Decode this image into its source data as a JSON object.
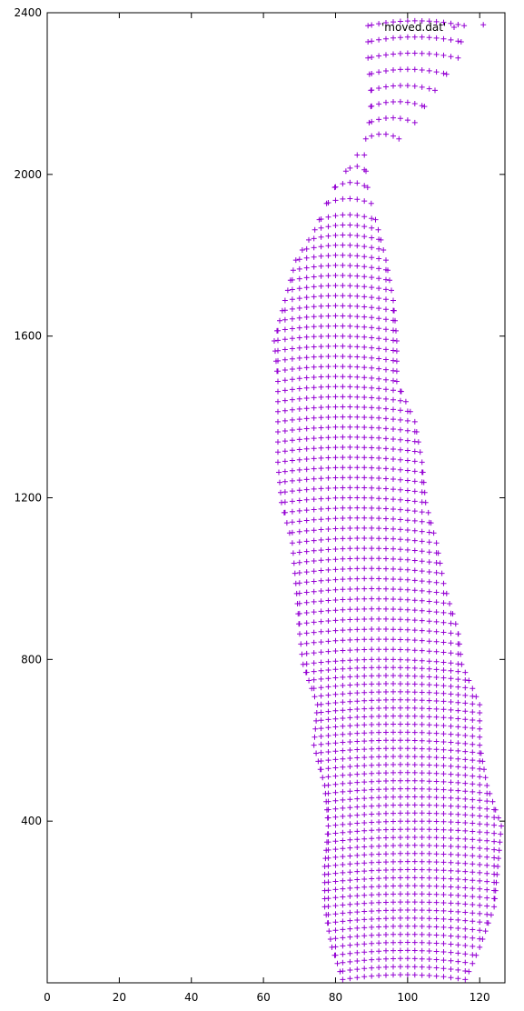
{
  "chart_data": {
    "type": "scatter",
    "title": "",
    "xlabel": "",
    "ylabel": "",
    "xlim": [
      0,
      127
    ],
    "ylim": [
      0,
      2400
    ],
    "xticks": [
      0,
      20,
      40,
      60,
      80,
      100,
      120
    ],
    "yticks": [
      400,
      800,
      1200,
      1600,
      2000,
      2400
    ],
    "grid": false,
    "legend": {
      "placement": "top-right",
      "entries": [
        "'moved.dat'"
      ]
    },
    "marker": "+",
    "color": "#9400d3",
    "sampling": {
      "x_step": 2,
      "row_heights_in_y_units": [
        20,
        25,
        40
      ]
    },
    "series": [
      {
        "name": "'moved.dat'",
        "segments": [
          {
            "y": 20,
            "x_min": 82,
            "x_max": 116
          },
          {
            "y": 100,
            "x_min": 79,
            "x_max": 120
          },
          {
            "y": 200,
            "x_min": 77,
            "x_max": 124
          },
          {
            "y": 300,
            "x_min": 77,
            "x_max": 125
          },
          {
            "y": 400,
            "x_min": 78,
            "x_max": 126
          },
          {
            "y": 500,
            "x_min": 77,
            "x_max": 122
          },
          {
            "y": 600,
            "x_min": 74,
            "x_max": 120
          },
          {
            "y": 700,
            "x_min": 75,
            "x_max": 120
          },
          {
            "y": 800,
            "x_min": 71,
            "x_max": 115
          },
          {
            "y": 880,
            "x_min": 70,
            "x_max": 114
          },
          {
            "y": 1000,
            "x_min": 69,
            "x_max": 110
          },
          {
            "y": 1100,
            "x_min": 68,
            "x_max": 108
          },
          {
            "y": 1200,
            "x_min": 65,
            "x_max": 105
          },
          {
            "y": 1300,
            "x_min": 64,
            "x_max": 104
          },
          {
            "y": 1400,
            "x_min": 64,
            "x_max": 102
          },
          {
            "y": 1500,
            "x_min": 64,
            "x_max": 97
          },
          {
            "y": 1600,
            "x_min": 63,
            "x_max": 97
          },
          {
            "y": 1700,
            "x_min": 66,
            "x_max": 96
          },
          {
            "y": 1800,
            "x_min": 69,
            "x_max": 94
          },
          {
            "y": 1870,
            "x_min": 74,
            "x_max": 92
          },
          {
            "y": 1970,
            "x_min": 79,
            "x_max": 89
          },
          {
            "y": 2060,
            "x_min": 86,
            "x_max": 88
          },
          {
            "y": 2110,
            "x_min": 89,
            "x_max": 100
          },
          {
            "y": 2200,
            "x_min": 90,
            "x_max": 106
          },
          {
            "y": 2300,
            "x_min": 89,
            "x_max": 114
          },
          {
            "y": 2395,
            "x_min": 89,
            "x_max": 116
          }
        ],
        "outliers": [
          {
            "x": 121,
            "y": 2370
          }
        ]
      }
    ]
  }
}
